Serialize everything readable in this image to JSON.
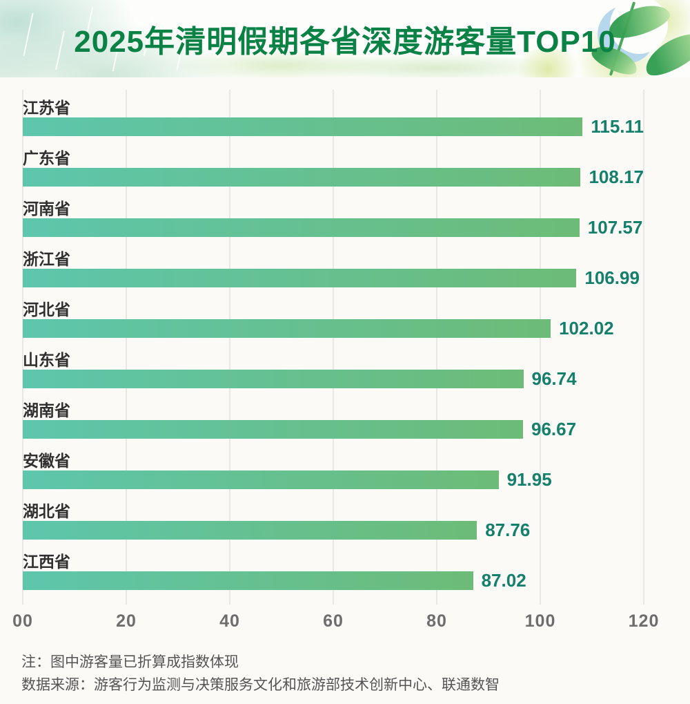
{
  "header": {
    "title": "2025年清明假期各省深度游客量TOP10",
    "title_color": "#0a8145",
    "decorations": [
      "rain-streaks",
      "watercolor-mountains",
      "green-leaves",
      "blue-swallow",
      "yellow-green-blobs"
    ]
  },
  "chart_data": {
    "type": "bar",
    "orientation": "horizontal",
    "title": "2025年清明假期各省深度游客量TOP10",
    "categories": [
      "江苏省",
      "广东省",
      "河南省",
      "浙江省",
      "河北省",
      "山东省",
      "湖南省",
      "安徽省",
      "湖北省",
      "江西省"
    ],
    "values": [
      115.11,
      108.17,
      107.57,
      106.99,
      102.02,
      96.74,
      96.67,
      91.95,
      87.76,
      87.02
    ],
    "value_labels": [
      "115.11",
      "108.17",
      "107.57",
      "106.99",
      "102.02",
      "96.74",
      "96.67",
      "91.95",
      "87.76",
      "87.02"
    ],
    "xlim": [
      0,
      120
    ],
    "xtick_labels": [
      "00",
      "20",
      "40",
      "60",
      "80",
      "100",
      "120"
    ],
    "xtick_values": [
      0,
      20,
      40,
      60,
      80,
      100,
      120
    ],
    "grid": "vertical",
    "legend": "none",
    "bar_color_start": "#5dc6ac",
    "bar_color_end": "#6dbb77",
    "value_color": "#147f6b",
    "category_label_color": "#2f2f2f",
    "tick_color": "#6d6d6d",
    "gridline_color": "#e7e7e3"
  },
  "footer": {
    "note": "注：图中游客量已折算成指数体现",
    "source": "数据来源：游客行为监测与决策服务文化和旅游部技术创新中心、联通数智"
  }
}
